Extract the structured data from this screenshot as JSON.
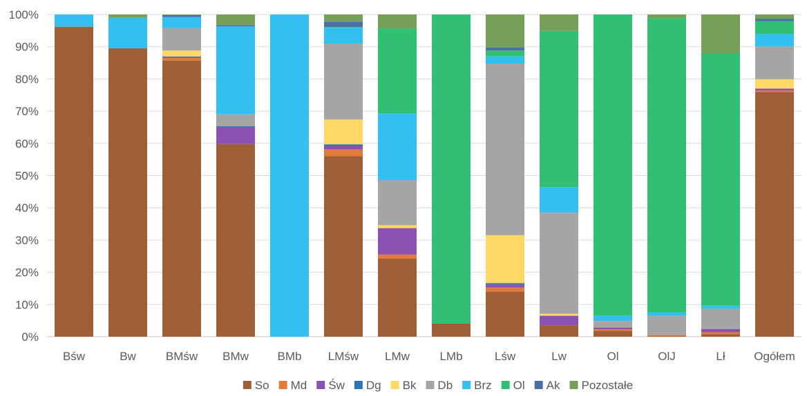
{
  "chart_data": {
    "type": "bar",
    "stacked": "percent",
    "categories": [
      "Bśw",
      "Bw",
      "BMśw",
      "BMw",
      "BMb",
      "LMśw",
      "LMw",
      "LMb",
      "Lśw",
      "Lw",
      "Ol",
      "OlJ",
      "Lł",
      "Ogółem"
    ],
    "ylim": [
      0,
      100
    ],
    "y_ticks": [
      "0%",
      "10%",
      "20%",
      "30%",
      "40%",
      "50%",
      "60%",
      "70%",
      "80%",
      "90%",
      "100%"
    ],
    "grid": true,
    "legend_position": "bottom",
    "series": [
      {
        "name": "So",
        "color": "#9E5F38",
        "values": [
          96.2,
          89.5,
          85.7,
          59.8,
          0,
          56.0,
          24.2,
          4.1,
          14.0,
          3.5,
          1.8,
          0.2,
          0.8,
          75.9
        ]
      },
      {
        "name": "Md",
        "color": "#E07B39",
        "values": [
          0,
          0,
          0.8,
          0,
          0,
          2.1,
          1.3,
          0,
          1.3,
          0,
          0.5,
          0.3,
          0.6,
          0.5
        ]
      },
      {
        "name": "Św",
        "color": "#8B52B3",
        "values": [
          0,
          0,
          0.3,
          5.3,
          0,
          1.1,
          8.2,
          0,
          0.9,
          3.0,
          0.5,
          0,
          1.0,
          0.6
        ]
      },
      {
        "name": "Dg",
        "color": "#2E75B6",
        "values": [
          0,
          0,
          0.2,
          0.2,
          0,
          0.5,
          0,
          0,
          0.4,
          0,
          0,
          0,
          0,
          0
        ]
      },
      {
        "name": "Bk",
        "color": "#FFD966",
        "values": [
          0,
          0,
          1.8,
          0,
          0,
          7.7,
          0.9,
          0,
          14.9,
          0.6,
          0,
          0,
          0,
          2.9
        ]
      },
      {
        "name": "Db",
        "color": "#A5A5A5",
        "values": [
          0,
          0,
          7.0,
          3.7,
          0,
          23.6,
          14.0,
          0,
          53.3,
          31.4,
          2.1,
          6.0,
          6.3,
          10.2
        ]
      },
      {
        "name": "Brz",
        "color": "#33BFF0",
        "values": [
          3.8,
          9.5,
          3.4,
          27.3,
          100,
          4.9,
          20.7,
          0,
          2.2,
          7.9,
          1.6,
          1.1,
          0.9,
          3.9
        ]
      },
      {
        "name": "Ol",
        "color": "#33BF73",
        "values": [
          0,
          0,
          0,
          0,
          0,
          0.2,
          26.4,
          95.9,
          1.8,
          48.5,
          93.5,
          91.3,
          78.3,
          3.9
        ]
      },
      {
        "name": "Ak",
        "color": "#4A6FA5",
        "values": [
          0,
          0,
          0.6,
          0.4,
          0,
          1.7,
          0,
          0,
          1.0,
          0,
          0,
          0,
          0,
          0.8
        ]
      },
      {
        "name": "Pozostałe",
        "color": "#76A05A",
        "values": [
          0,
          1.0,
          0.2,
          3.3,
          0,
          2.2,
          4.3,
          0,
          10.2,
          5.1,
          0,
          1.1,
          12.1,
          1.3
        ]
      }
    ]
  }
}
